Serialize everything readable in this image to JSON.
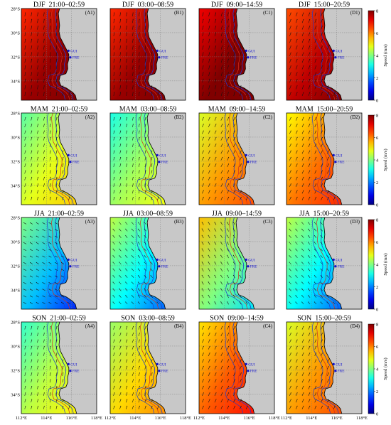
{
  "chart_data": {
    "type": "heatmap",
    "description_rows": [
      "DJF",
      "MAM",
      "JJA",
      "SON"
    ],
    "time_windows": [
      "21:00–02:59",
      "03:00–08:59",
      "09:00–14:59",
      "15:00–20:59"
    ],
    "panel_titles": [
      [
        "DJF  21:00–02:59",
        "DJF  03:00–08:59",
        "DJF  09:00–14:59",
        "DJF  15:00–20:59"
      ],
      [
        "MAM  21:00–02:59",
        "MAM  03:00–08:59",
        "MAM  09:00–14:59",
        "MAM  15:00–20:59"
      ],
      [
        "JJA  21:00–02:59",
        "JJA  03:00–08:59",
        "JJA  09:00–14:59",
        "JJA  15:00–20:59"
      ],
      [
        "SON  21:00–02:59",
        "SON  03:00–08:59",
        "SON  09:00–14:59",
        "SON  15:00–20:59"
      ]
    ],
    "panel_labels": [
      [
        "(A1)",
        "(B1)",
        "(C1)",
        "(D1)"
      ],
      [
        "(A2)",
        "(B2)",
        "(C2)",
        "(D2)"
      ],
      [
        "(A3)",
        "(B3)",
        "(C3)",
        "(D3)"
      ],
      [
        "(A4)",
        "(B4)",
        "(C4)",
        "(D4)"
      ]
    ],
    "mean_speed_estimate_ms": [
      [
        7.5,
        7.5,
        7.9,
        7.2
      ],
      [
        4.5,
        4.0,
        5.5,
        5.8
      ],
      [
        2.5,
        3.0,
        4.0,
        3.0
      ],
      [
        4.2,
        5.0,
        6.0,
        5.5
      ]
    ],
    "wind_direction_deg": [
      [
        10,
        10,
        15,
        20
      ],
      [
        15,
        15,
        25,
        25
      ],
      [
        300,
        320,
        330,
        320
      ],
      [
        15,
        20,
        25,
        25
      ]
    ],
    "x_tick_labels": [
      "112°E",
      "114°E",
      "116°E",
      "118°E"
    ],
    "x_ticks": [
      112,
      114,
      116,
      118
    ],
    "y_tick_labels": [
      "28°S",
      "30°S",
      "32°S",
      "34°S"
    ],
    "y_ticks": [
      -28,
      -30,
      -32,
      -34
    ],
    "xlim": [
      112,
      118
    ],
    "ylim": [
      -35.6,
      -28
    ],
    "stations": [
      {
        "name": "GUI",
        "lon": 115.75,
        "lat": -31.5
      },
      {
        "name": "FRE",
        "lon": 115.9,
        "lat": -32.05
      }
    ],
    "colorbar": {
      "label": "Speed (m/s)",
      "ticks": [
        0,
        2,
        4,
        6,
        8
      ],
      "tick_labels": [
        "0",
        "2",
        "4",
        "6",
        "8"
      ],
      "range": [
        0,
        8
      ],
      "colormap": "jet"
    },
    "grid": true
  }
}
